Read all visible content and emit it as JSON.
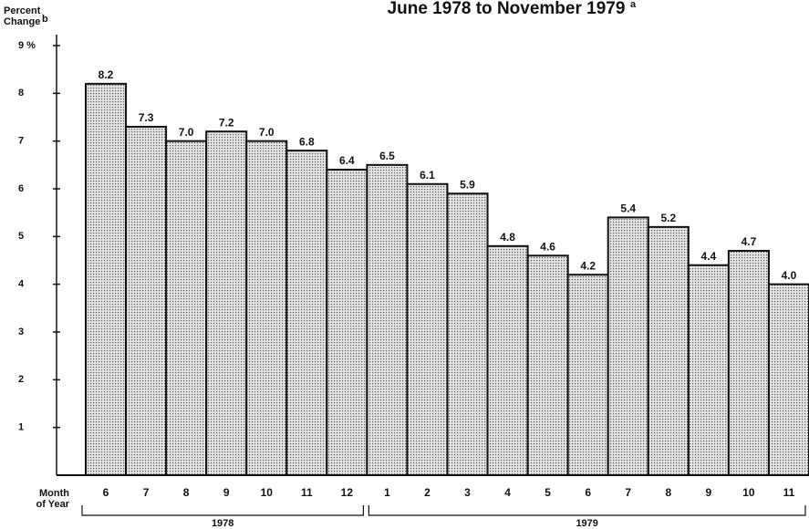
{
  "chart_data": {
    "type": "bar",
    "title": "June 1978 to November 1979",
    "title_note": "a",
    "y_label_lines": [
      "Percent",
      "Change"
    ],
    "y_label_note": "b",
    "x_label_lines": [
      "Month",
      "of Year"
    ],
    "categories": [
      "6",
      "7",
      "8",
      "9",
      "10",
      "11",
      "12",
      "1",
      "2",
      "3",
      "4",
      "5",
      "6",
      "7",
      "8",
      "9",
      "10",
      "11"
    ],
    "x_groups": [
      "1978",
      "1979"
    ],
    "values": [
      8.2,
      7.3,
      7.0,
      7.2,
      7.0,
      6.8,
      6.4,
      6.5,
      6.1,
      5.9,
      4.8,
      4.6,
      4.2,
      5.4,
      5.2,
      4.4,
      4.7,
      4.0
    ],
    "value_labels": [
      "8.2",
      "7.3",
      "7.0",
      "7.2",
      "7.0",
      "6.8",
      "6.4",
      "6.5",
      "6.1",
      "5.9",
      "4.8",
      "4.6",
      "4.2",
      "5.4",
      "5.2",
      "4.4",
      "4.7",
      "4.0"
    ],
    "color": "#c4c4c4",
    "ylim": [
      0,
      9
    ],
    "yticks": [
      1,
      2,
      3,
      4,
      5,
      6,
      7,
      8,
      {
        "value": 9,
        "label": "9 %"
      }
    ]
  }
}
